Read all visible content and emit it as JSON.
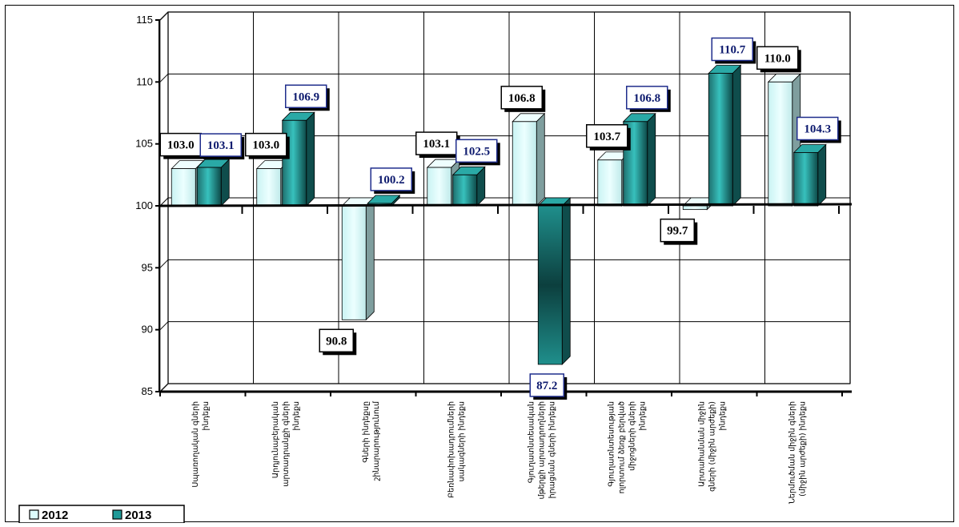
{
  "chart_data": {
    "type": "bar",
    "title": "",
    "xlabel": "",
    "ylabel": "",
    "ylim": [
      85,
      115
    ],
    "baseline": 100,
    "yticks": [
      85,
      90,
      95,
      100,
      105,
      110,
      115
    ],
    "grid": true,
    "legend_position": "bottom-left",
    "categories": [
      [
        "Սպառողական գների",
        "ինդեքս"
      ],
      [
        "Արդյունաբերական",
        "արտադրանքի գների",
        "ինդեքս"
      ],
      [
        "Գների ինդեքսը",
        "շինարարությունում"
      ],
      [
        "Բեռնափոխադրումների",
        "սակագների ինդեքս"
      ],
      [
        "Գյուղատնտեսական",
        "մթերքի արտադրողների",
        "իրացման գների ինդեքս"
      ],
      [
        "Գյուղատնտեսության",
        "ոլորտում ձեռք բերված",
        "միջոցների գների",
        "ինդեքս"
      ],
      [
        "Արտահանման միջին",
        "գների (միջին արժեքի)",
        "ինդեքս"
      ],
      [
        "Ներմուծման միջին գների",
        "(միջին արժեքի) ինդեքս"
      ]
    ],
    "series": [
      {
        "name": "2012",
        "color": "#ddfdfd",
        "values": [
          103.0,
          103.0,
          90.8,
          103.1,
          106.8,
          103.7,
          99.7,
          110.0
        ],
        "labels": [
          "103.0",
          "103.0",
          "90.8",
          "103.1",
          "106.8",
          "103.7",
          "99.7",
          "110.0"
        ]
      },
      {
        "name": "2013",
        "color": "#1f9a98",
        "values": [
          103.1,
          106.9,
          100.2,
          102.5,
          87.2,
          106.8,
          110.7,
          104.3
        ],
        "labels": [
          "103.1",
          "106.9",
          "100.2",
          "102.5",
          "87.2",
          "106.8",
          "110.7",
          "104.3"
        ]
      }
    ]
  },
  "legend": {
    "items": [
      {
        "label": "2012",
        "color": "#ddfdfd"
      },
      {
        "label": "2013",
        "color": "#1f9a98"
      }
    ]
  }
}
